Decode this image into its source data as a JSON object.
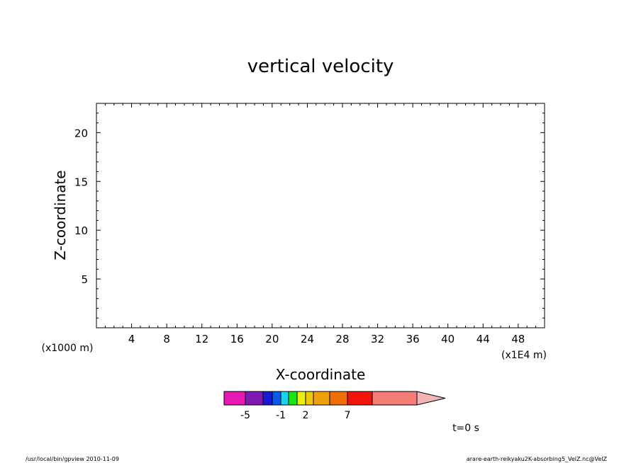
{
  "chart_data": {
    "type": "heatmap",
    "title": "vertical velocity",
    "xlabel": "X-coordinate",
    "ylabel": "Z-coordinate",
    "xlim": [
      0,
      51
    ],
    "ylim": [
      0,
      23
    ],
    "x_ticks": [
      4,
      8,
      12,
      16,
      20,
      24,
      28,
      32,
      36,
      40,
      44,
      48
    ],
    "y_ticks": [
      5,
      10,
      15,
      20
    ],
    "x_unit": "(x1E4 m)",
    "y_unit": "(x1000 m)",
    "values": [],
    "colorbar": {
      "colors": [
        "#e619b4",
        "#8019b4",
        "#1a1ad2",
        "#0a5af0",
        "#12d6f0",
        "#18e612",
        "#e6f012",
        "#f0c80a",
        "#f0a00a",
        "#f06e0a",
        "#f0140a",
        "#f47d78"
      ],
      "extend_color": "#f4b4b4",
      "tick_labels": [
        "-5",
        "-1",
        "2",
        "7"
      ]
    }
  },
  "time_label": "t=0 s",
  "footer_left": "/usr/local/bin/gpview   2010-11-09",
  "footer_right": "arare-earth-reikyaku2K-absorbing5_VelZ.nc@VelZ"
}
